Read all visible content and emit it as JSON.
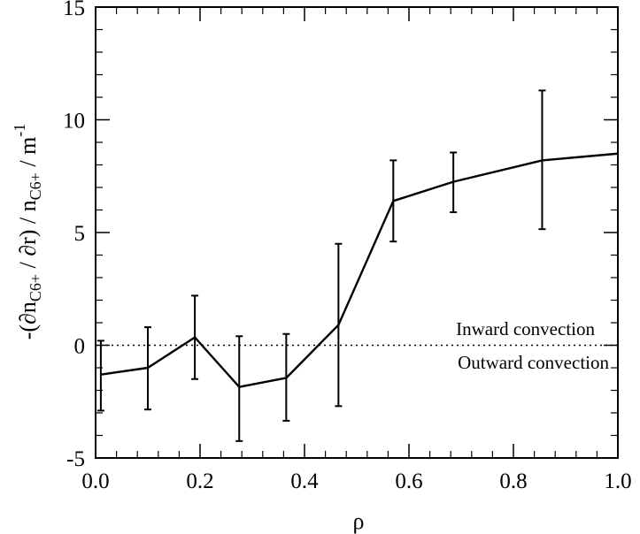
{
  "chart_data": {
    "type": "line",
    "title": "",
    "xlabel": "ρ",
    "ylabel": {
      "prefix": "-(∂n",
      "sub1": "C6+",
      "middle": " / ∂r) / n",
      "sub2": "C6+",
      "unit_prefix": "  /  m",
      "unit_sup": "-1"
    },
    "xlim": [
      0.0,
      1.0
    ],
    "ylim": [
      -5,
      15
    ],
    "x_ticks": [
      0.0,
      0.2,
      0.4,
      0.6,
      0.8,
      1.0
    ],
    "x_tick_labels": [
      "0.0",
      "0.2",
      "0.4",
      "0.6",
      "0.8",
      "1.0"
    ],
    "y_ticks": [
      -5,
      0,
      5,
      10,
      15
    ],
    "y_tick_labels": [
      "-5",
      "0",
      "5",
      "10",
      "15"
    ],
    "grid": false,
    "series": [
      {
        "x": [
          0.01,
          0.1,
          0.19,
          0.275,
          0.365,
          0.465,
          0.57,
          0.685,
          0.855,
          1.0
        ],
        "y": [
          -1.3,
          -1.0,
          0.35,
          -1.85,
          -1.45,
          0.9,
          6.4,
          7.25,
          8.2,
          8.5
        ],
        "yerr_low": [
          -2.9,
          -2.85,
          -1.5,
          -4.25,
          -3.35,
          -2.7,
          4.6,
          5.9,
          5.15,
          null
        ],
        "yerr_high": [
          0.2,
          0.8,
          2.2,
          0.4,
          0.5,
          4.5,
          8.2,
          8.55,
          11.3,
          null
        ]
      }
    ],
    "reference_line": {
      "y": 0,
      "style": "dotted"
    },
    "annotations": {
      "inward": "Inward convection",
      "outward": "Outward convection"
    }
  }
}
